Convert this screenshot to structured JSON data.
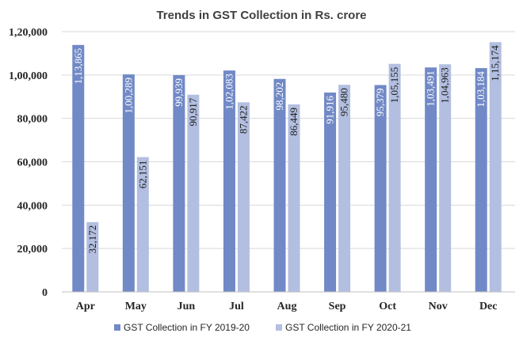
{
  "chart_data": {
    "type": "bar",
    "title": "Trends in GST Collection in Rs. crore",
    "xlabel": "",
    "ylabel": "",
    "ylim": [
      0,
      120000
    ],
    "y_ticks": [
      "0",
      "20,000",
      "40,000",
      "60,000",
      "80,000",
      "1,00,000",
      "1,20,000"
    ],
    "y_tick_values": [
      0,
      20000,
      40000,
      60000,
      80000,
      100000,
      120000
    ],
    "categories": [
      "Apr",
      "May",
      "Jun",
      "Jul",
      "Aug",
      "Sep",
      "Oct",
      "Nov",
      "Dec"
    ],
    "grid": true,
    "legend_position": "bottom",
    "series": [
      {
        "name": "GST Collection in FY 2019-20",
        "color": "#7189c6",
        "values": [
          113865,
          100289,
          99939,
          102083,
          98202,
          91916,
          95379,
          103491,
          103184
        ],
        "labels": [
          "1,13,865",
          "1,00,289",
          "99,939",
          "1,02,083",
          "98,202",
          "91,916",
          "95,379",
          "1,03,491",
          "1,03,184"
        ]
      },
      {
        "name": "GST Collection in FY 2020-21",
        "color": "#b3bfe0",
        "values": [
          32172,
          62151,
          90917,
          87422,
          86449,
          95480,
          105155,
          104963,
          115174
        ],
        "labels": [
          "32,172",
          "62,151",
          "90,917",
          "87,422",
          "86,449",
          "95,480",
          "1,05,155",
          "1,04,963",
          "1,15,174"
        ]
      }
    ]
  }
}
